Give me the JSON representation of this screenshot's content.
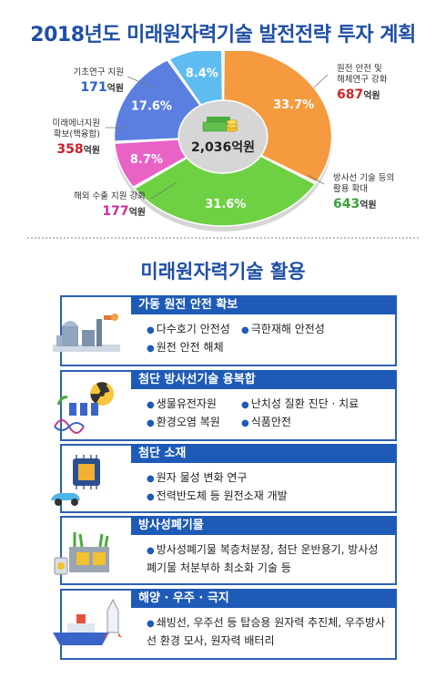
{
  "title": "2018년도 미래원자력기술 발전전략 투자 계획",
  "chart_data": {
    "type": "pie",
    "total": "2,036억원",
    "slices": [
      {
        "pct": 33.7,
        "pct_label": "33.7%",
        "color": "#f59a3f",
        "label_lines": [
          "원전 안전 및",
          "해체연구 강화"
        ],
        "amount_num": "687",
        "amount_unit": "억원"
      },
      {
        "pct": 31.6,
        "pct_label": "31.6%",
        "color": "#6ed144",
        "label_lines": [
          "방사선 기술 등의",
          "활용 확대"
        ],
        "amount_num": "643",
        "amount_unit": "억원"
      },
      {
        "pct": 8.7,
        "pct_label": "8.7%",
        "color": "#ea62c6",
        "label_lines": [
          "해외 수출 지원 강화"
        ],
        "amount_num": "177",
        "amount_unit": "억원"
      },
      {
        "pct": 17.6,
        "pct_label": "17.6%",
        "color": "#5b7fe0",
        "label_lines": [
          "미래에너지원",
          "확보(핵융합)"
        ],
        "amount_num": "358",
        "amount_unit": "억원"
      },
      {
        "pct": 8.4,
        "pct_label": "8.4%",
        "color": "#5fbcf0",
        "label_lines": [
          "기초연구 지원"
        ],
        "amount_num": "171",
        "amount_unit": "억원"
      }
    ]
  },
  "section2": {
    "title": "미래원자력기술 활용",
    "cards": [
      {
        "heading": "가동 원전 안전 확보",
        "icon": "nuclear-plant-icon",
        "rows": [
          [
            "다수호기 안전성",
            "극한재해 안전성"
          ],
          [
            "원전 안전 해체"
          ]
        ]
      },
      {
        "heading": "첨단 방사선기술 융복합",
        "icon": "radiation-dna-icon",
        "rows": [
          [
            "생물유전자원",
            "난치성 질환 진단 · 치료"
          ],
          [
            "환경오염 복원",
            "식품안전"
          ]
        ]
      },
      {
        "heading": "첨단 소재",
        "icon": "chip-car-icon",
        "rows": [
          [
            "원자 물성 변화 연구"
          ],
          [
            "전력반도체 등 원전소재 개발"
          ]
        ]
      },
      {
        "heading": "방사성폐기물",
        "icon": "waste-barrel-icon",
        "rows": [
          [
            "방사성폐기물 복층처분장, 첨단 운반용기, 방사성 폐기물 처분부하 최소화 기술 등"
          ]
        ]
      },
      {
        "heading": "해양 · 우주 · 극지",
        "icon": "ship-rocket-icon",
        "rows": [
          [
            "쇄빙선, 우주선 등 탑승용 원자력 추진체, 우주방사선 환경 모사, 원자력 배터리"
          ]
        ]
      }
    ]
  }
}
